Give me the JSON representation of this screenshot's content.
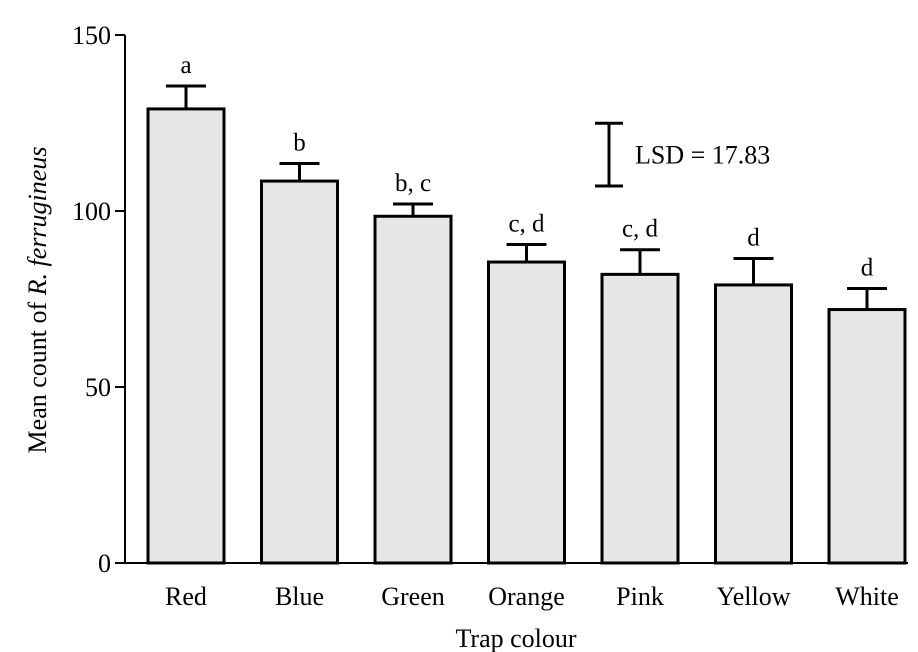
{
  "chart_data": {
    "type": "bar",
    "title": "",
    "xlabel": "Trap colour",
    "ylabel_prefix": "Mean count of ",
    "ylabel_species": "R. ferrugineus",
    "ylim": [
      0,
      150
    ],
    "yticks": [
      0,
      50,
      100,
      150
    ],
    "categories": [
      "Red",
      "Blue",
      "Green",
      "Orange",
      "Pink",
      "Yellow",
      "White"
    ],
    "values": [
      129,
      108.5,
      98.5,
      85.5,
      82,
      79,
      72
    ],
    "error_upper": [
      6.5,
      5,
      3.5,
      5,
      7,
      7.5,
      6
    ],
    "significance_letters": [
      "a",
      "b",
      "b, c",
      "c, d",
      "c, d",
      "d",
      "d"
    ],
    "bar_color": "#e6e6e6",
    "lsd": {
      "label": "LSD = 17.83",
      "value": 17.83,
      "center": 116
    }
  }
}
